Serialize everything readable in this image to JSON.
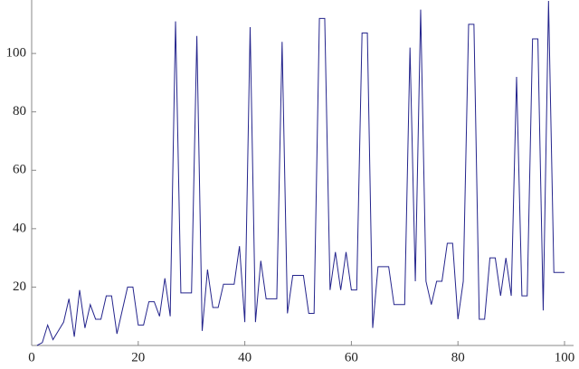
{
  "chart_data": {
    "type": "line",
    "x": [
      1,
      2,
      3,
      4,
      5,
      6,
      7,
      8,
      9,
      10,
      11,
      12,
      13,
      14,
      15,
      16,
      17,
      18,
      19,
      20,
      21,
      22,
      23,
      24,
      25,
      26,
      27,
      28,
      29,
      30,
      31,
      32,
      33,
      34,
      35,
      36,
      37,
      38,
      39,
      40,
      41,
      42,
      43,
      44,
      45,
      46,
      47,
      48,
      49,
      50,
      51,
      52,
      53,
      54,
      55,
      56,
      57,
      58,
      59,
      60,
      61,
      62,
      63,
      64,
      65,
      66,
      67,
      68,
      69,
      70,
      71,
      72,
      73,
      74,
      75,
      76,
      77,
      78,
      79,
      80,
      81,
      82,
      83,
      84,
      85,
      86,
      87,
      88,
      89,
      90,
      91,
      92,
      93,
      94,
      95,
      96,
      97,
      98,
      99,
      100
    ],
    "series": [
      {
        "color": "#24248c",
        "values": [
          0,
          1,
          7,
          2,
          5,
          8,
          16,
          3,
          19,
          6,
          14,
          9,
          9,
          17,
          17,
          4,
          12,
          20,
          20,
          7,
          7,
          15,
          15,
          10,
          23,
          10,
          111,
          18,
          18,
          18,
          106,
          5,
          26,
          13,
          13,
          21,
          21,
          21,
          34,
          8,
          109,
          8,
          29,
          16,
          16,
          16,
          104,
          11,
          24,
          24,
          24,
          11,
          11,
          112,
          112,
          19,
          32,
          19,
          32,
          19,
          19,
          107,
          107,
          6,
          27,
          27,
          27,
          14,
          14,
          14,
          102,
          22,
          115,
          22,
          14,
          22,
          22,
          35,
          35,
          9,
          22,
          110,
          110,
          9,
          9,
          30,
          30,
          17,
          30,
          17,
          92,
          17,
          17,
          105,
          105,
          12,
          118,
          25,
          25,
          25
        ]
      }
    ],
    "xlim": [
      0,
      100
    ],
    "ylim": [
      0,
      118
    ],
    "xticks": [
      0,
      20,
      40,
      60,
      80,
      100
    ],
    "yticks": [
      20,
      40,
      60,
      80,
      100
    ]
  }
}
